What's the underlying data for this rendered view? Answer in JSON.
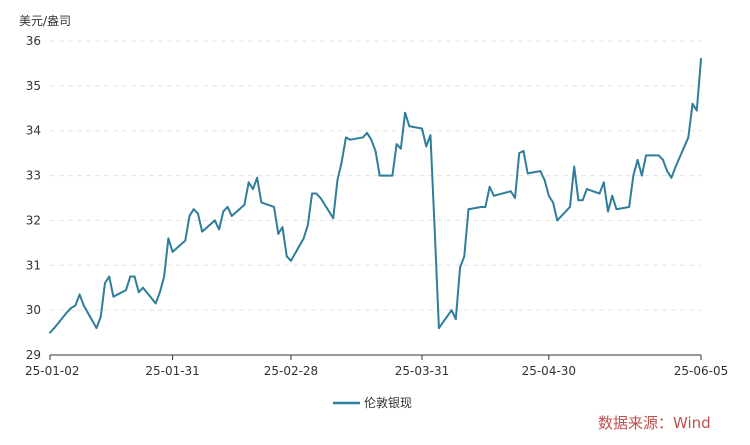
{
  "chart_data": {
    "type": "line",
    "unit": "美元/盎司",
    "ylim": [
      29,
      36
    ],
    "yticks": [
      "29",
      "30",
      "31",
      "32",
      "33",
      "34",
      "35",
      "36"
    ],
    "xticks": [
      {
        "date": "2025-01-02",
        "label": "25-01-02"
      },
      {
        "date": "2025-01-31",
        "label": "25-01-31"
      },
      {
        "date": "2025-02-28",
        "label": "25-02-28"
      },
      {
        "date": "2025-03-31",
        "label": "25-03-31"
      },
      {
        "date": "2025-04-30",
        "label": "25-04-30"
      },
      {
        "date": "2025-06-05",
        "label": "25-06-05"
      }
    ],
    "grid": true,
    "legend_position": "bottom",
    "series": [
      {
        "name": "伦敦银现",
        "color": "#2e7d9a",
        "points": [
          [
            "2025-01-02",
            29.5
          ],
          [
            "2025-01-03",
            29.6
          ],
          [
            "2025-01-06",
            29.95
          ],
          [
            "2025-01-07",
            30.05
          ],
          [
            "2025-01-08",
            30.1
          ],
          [
            "2025-01-09",
            30.35
          ],
          [
            "2025-01-10",
            30.1
          ],
          [
            "2025-01-13",
            29.6
          ],
          [
            "2025-01-14",
            29.85
          ],
          [
            "2025-01-15",
            30.6
          ],
          [
            "2025-01-16",
            30.75
          ],
          [
            "2025-01-17",
            30.3
          ],
          [
            "2025-01-20",
            30.45
          ],
          [
            "2025-01-21",
            30.75
          ],
          [
            "2025-01-22",
            30.75
          ],
          [
            "2025-01-23",
            30.4
          ],
          [
            "2025-01-24",
            30.5
          ],
          [
            "2025-01-27",
            30.15
          ],
          [
            "2025-01-28",
            30.4
          ],
          [
            "2025-01-29",
            30.75
          ],
          [
            "2025-01-30",
            31.6
          ],
          [
            "2025-01-31",
            31.3
          ],
          [
            "2025-02-03",
            31.55
          ],
          [
            "2025-02-04",
            32.1
          ],
          [
            "2025-02-05",
            32.25
          ],
          [
            "2025-02-06",
            32.15
          ],
          [
            "2025-02-07",
            31.75
          ],
          [
            "2025-02-10",
            32.0
          ],
          [
            "2025-02-11",
            31.8
          ],
          [
            "2025-02-12",
            32.2
          ],
          [
            "2025-02-13",
            32.3
          ],
          [
            "2025-02-14",
            32.1
          ],
          [
            "2025-02-17",
            32.35
          ],
          [
            "2025-02-18",
            32.85
          ],
          [
            "2025-02-19",
            32.7
          ],
          [
            "2025-02-20",
            32.95
          ],
          [
            "2025-02-21",
            32.4
          ],
          [
            "2025-02-24",
            32.3
          ],
          [
            "2025-02-25",
            31.7
          ],
          [
            "2025-02-26",
            31.85
          ],
          [
            "2025-02-27",
            31.2
          ],
          [
            "2025-02-28",
            31.1
          ],
          [
            "2025-03-03",
            31.6
          ],
          [
            "2025-03-04",
            31.9
          ],
          [
            "2025-03-05",
            32.6
          ],
          [
            "2025-03-06",
            32.6
          ],
          [
            "2025-03-07",
            32.5
          ],
          [
            "2025-03-10",
            32.05
          ],
          [
            "2025-03-11",
            32.9
          ],
          [
            "2025-03-12",
            33.3
          ],
          [
            "2025-03-13",
            33.85
          ],
          [
            "2025-03-14",
            33.8
          ],
          [
            "2025-03-17",
            33.85
          ],
          [
            "2025-03-18",
            33.95
          ],
          [
            "2025-03-19",
            33.8
          ],
          [
            "2025-03-20",
            33.55
          ],
          [
            "2025-03-21",
            33.0
          ],
          [
            "2025-03-24",
            33.0
          ],
          [
            "2025-03-25",
            33.7
          ],
          [
            "2025-03-26",
            33.6
          ],
          [
            "2025-03-27",
            34.4
          ],
          [
            "2025-03-28",
            34.1
          ],
          [
            "2025-03-31",
            34.05
          ],
          [
            "2025-04-01",
            33.65
          ],
          [
            "2025-04-02",
            33.9
          ],
          [
            "2025-04-03",
            31.8
          ],
          [
            "2025-04-04",
            29.6
          ],
          [
            "2025-04-07",
            30.0
          ],
          [
            "2025-04-08",
            29.8
          ],
          [
            "2025-04-09",
            30.95
          ],
          [
            "2025-04-10",
            31.2
          ],
          [
            "2025-04-11",
            32.25
          ],
          [
            "2025-04-14",
            32.3
          ],
          [
            "2025-04-15",
            32.3
          ],
          [
            "2025-04-16",
            32.75
          ],
          [
            "2025-04-17",
            32.55
          ],
          [
            "2025-04-21",
            32.65
          ],
          [
            "2025-04-22",
            32.5
          ],
          [
            "2025-04-23",
            33.5
          ],
          [
            "2025-04-24",
            33.55
          ],
          [
            "2025-04-25",
            33.05
          ],
          [
            "2025-04-28",
            33.1
          ],
          [
            "2025-04-29",
            32.9
          ],
          [
            "2025-04-30",
            32.55
          ],
          [
            "2025-05-01",
            32.4
          ],
          [
            "2025-05-02",
            32.0
          ],
          [
            "2025-05-05",
            32.3
          ],
          [
            "2025-05-06",
            33.2
          ],
          [
            "2025-05-07",
            32.45
          ],
          [
            "2025-05-08",
            32.45
          ],
          [
            "2025-05-09",
            32.7
          ],
          [
            "2025-05-12",
            32.6
          ],
          [
            "2025-05-13",
            32.85
          ],
          [
            "2025-05-14",
            32.2
          ],
          [
            "2025-05-15",
            32.55
          ],
          [
            "2025-05-16",
            32.25
          ],
          [
            "2025-05-19",
            32.3
          ],
          [
            "2025-05-20",
            33.0
          ],
          [
            "2025-05-21",
            33.35
          ],
          [
            "2025-05-22",
            33.0
          ],
          [
            "2025-05-23",
            33.45
          ],
          [
            "2025-05-26",
            33.45
          ],
          [
            "2025-05-27",
            33.35
          ],
          [
            "2025-05-28",
            33.1
          ],
          [
            "2025-05-29",
            32.95
          ],
          [
            "2025-05-30",
            33.2
          ],
          [
            "2025-06-02",
            33.85
          ],
          [
            "2025-06-03",
            34.6
          ],
          [
            "2025-06-04",
            34.45
          ],
          [
            "2025-06-05",
            35.6
          ]
        ]
      }
    ]
  },
  "source": {
    "text": "数据来源：Wind",
    "color": "#c0504d"
  }
}
